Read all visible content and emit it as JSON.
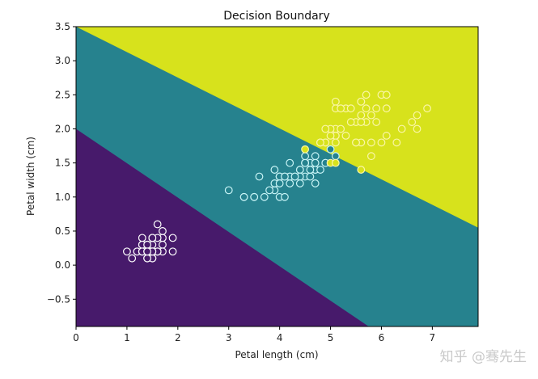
{
  "chart_data": {
    "type": "scatter",
    "title": "Decision Boundary",
    "xlabel": "Petal length (cm)",
    "ylabel": "Petal width (cm)",
    "xlim": [
      0,
      7.9
    ],
    "ylim": [
      -0.9,
      3.5
    ],
    "xticks": [
      "0",
      "1",
      "2",
      "3",
      "4",
      "5",
      "6",
      "7"
    ],
    "yticks": [
      "−0.5",
      "0.0",
      "0.5",
      "1.0",
      "1.5",
      "2.0",
      "2.5",
      "3.0",
      "3.5"
    ],
    "grid": false,
    "regions": {
      "colors": [
        "#471a6b",
        "#26828e",
        "#d7e21c"
      ],
      "boundaries": [
        {
          "from": [
            0,
            2.0
          ],
          "to": [
            5.75,
            -0.9
          ]
        },
        {
          "from": [
            0,
            3.5
          ],
          "to": [
            7.9,
            0.55
          ]
        }
      ]
    },
    "series": [
      {
        "color": "#471a6b",
        "edge": "#ffffff",
        "points": [
          [
            1.4,
            0.2
          ],
          [
            1.4,
            0.2
          ],
          [
            1.3,
            0.2
          ],
          [
            1.5,
            0.2
          ],
          [
            1.4,
            0.2
          ],
          [
            1.7,
            0.4
          ],
          [
            1.4,
            0.3
          ],
          [
            1.5,
            0.2
          ],
          [
            1.4,
            0.2
          ],
          [
            1.5,
            0.1
          ],
          [
            1.5,
            0.2
          ],
          [
            1.6,
            0.2
          ],
          [
            1.4,
            0.1
          ],
          [
            1.1,
            0.1
          ],
          [
            1.2,
            0.2
          ],
          [
            1.5,
            0.4
          ],
          [
            1.3,
            0.4
          ],
          [
            1.4,
            0.3
          ],
          [
            1.7,
            0.3
          ],
          [
            1.5,
            0.3
          ],
          [
            1.7,
            0.2
          ],
          [
            1.5,
            0.4
          ],
          [
            1.0,
            0.2
          ],
          [
            1.7,
            0.5
          ],
          [
            1.9,
            0.2
          ],
          [
            1.6,
            0.2
          ],
          [
            1.6,
            0.4
          ],
          [
            1.5,
            0.2
          ],
          [
            1.4,
            0.2
          ],
          [
            1.6,
            0.2
          ],
          [
            1.6,
            0.2
          ],
          [
            1.5,
            0.4
          ],
          [
            1.5,
            0.1
          ],
          [
            1.4,
            0.2
          ],
          [
            1.5,
            0.2
          ],
          [
            1.2,
            0.2
          ],
          [
            1.3,
            0.2
          ],
          [
            1.4,
            0.1
          ],
          [
            1.3,
            0.2
          ],
          [
            1.5,
            0.2
          ],
          [
            1.3,
            0.3
          ],
          [
            1.3,
            0.3
          ],
          [
            1.3,
            0.2
          ],
          [
            1.6,
            0.6
          ],
          [
            1.9,
            0.4
          ],
          [
            1.4,
            0.3
          ],
          [
            1.6,
            0.2
          ],
          [
            1.4,
            0.2
          ],
          [
            1.5,
            0.2
          ],
          [
            1.4,
            0.2
          ]
        ]
      },
      {
        "color": "#26828e",
        "edge": "#c8f4f6",
        "points": [
          [
            4.7,
            1.4
          ],
          [
            4.5,
            1.5
          ],
          [
            4.9,
            1.5
          ],
          [
            4.0,
            1.3
          ],
          [
            4.6,
            1.5
          ],
          [
            4.5,
            1.3
          ],
          [
            4.7,
            1.6
          ],
          [
            3.3,
            1.0
          ],
          [
            4.6,
            1.3
          ],
          [
            3.9,
            1.4
          ],
          [
            3.5,
            1.0
          ],
          [
            4.2,
            1.5
          ],
          [
            4.0,
            1.0
          ],
          [
            4.7,
            1.4
          ],
          [
            3.6,
            1.3
          ],
          [
            4.4,
            1.4
          ],
          [
            4.5,
            1.5
          ],
          [
            4.1,
            1.0
          ],
          [
            4.5,
            1.5
          ],
          [
            3.9,
            1.1
          ],
          [
            4.8,
            1.8
          ],
          [
            4.0,
            1.3
          ],
          [
            4.9,
            1.5
          ],
          [
            4.7,
            1.2
          ],
          [
            4.3,
            1.3
          ],
          [
            4.4,
            1.4
          ],
          [
            4.8,
            1.4
          ],
          [
            5.0,
            1.7
          ],
          [
            4.5,
            1.5
          ],
          [
            3.5,
            1.0
          ],
          [
            3.8,
            1.1
          ],
          [
            3.7,
            1.0
          ],
          [
            3.9,
            1.2
          ],
          [
            5.1,
            1.6
          ],
          [
            4.5,
            1.5
          ],
          [
            4.5,
            1.6
          ],
          [
            4.7,
            1.5
          ],
          [
            4.4,
            1.3
          ],
          [
            4.1,
            1.3
          ],
          [
            4.0,
            1.3
          ],
          [
            4.4,
            1.2
          ],
          [
            4.6,
            1.4
          ],
          [
            4.0,
            1.2
          ],
          [
            3.3,
            1.0
          ],
          [
            4.2,
            1.3
          ],
          [
            4.2,
            1.2
          ],
          [
            4.2,
            1.3
          ],
          [
            4.3,
            1.3
          ],
          [
            3.0,
            1.1
          ],
          [
            4.1,
            1.3
          ]
        ]
      },
      {
        "color": "#d7e21c",
        "edge": "#fbf6a8",
        "points": [
          [
            6.0,
            2.5
          ],
          [
            5.1,
            1.9
          ],
          [
            5.9,
            2.1
          ],
          [
            5.6,
            1.8
          ],
          [
            5.8,
            2.2
          ],
          [
            6.6,
            2.1
          ],
          [
            4.5,
            1.7
          ],
          [
            6.3,
            1.8
          ],
          [
            5.8,
            1.8
          ],
          [
            6.1,
            2.5
          ],
          [
            5.1,
            2.0
          ],
          [
            5.3,
            1.9
          ],
          [
            5.5,
            2.1
          ],
          [
            5.0,
            2.0
          ],
          [
            5.1,
            2.4
          ],
          [
            5.3,
            2.3
          ],
          [
            5.5,
            1.8
          ],
          [
            6.7,
            2.2
          ],
          [
            6.9,
            2.3
          ],
          [
            5.0,
            1.5
          ],
          [
            5.7,
            2.3
          ],
          [
            4.9,
            2.0
          ],
          [
            6.7,
            2.0
          ],
          [
            4.9,
            1.8
          ],
          [
            5.7,
            2.1
          ],
          [
            6.0,
            1.8
          ],
          [
            4.8,
            1.8
          ],
          [
            4.9,
            1.8
          ],
          [
            5.6,
            2.1
          ],
          [
            5.8,
            1.6
          ],
          [
            6.1,
            1.9
          ],
          [
            6.4,
            2.0
          ],
          [
            5.6,
            2.2
          ],
          [
            5.1,
            1.5
          ],
          [
            5.6,
            1.4
          ],
          [
            6.1,
            2.3
          ],
          [
            5.6,
            2.4
          ],
          [
            5.5,
            1.8
          ],
          [
            4.8,
            1.8
          ],
          [
            5.4,
            2.1
          ],
          [
            5.6,
            2.4
          ],
          [
            5.1,
            2.3
          ],
          [
            5.1,
            1.9
          ],
          [
            5.9,
            2.3
          ],
          [
            5.7,
            2.5
          ],
          [
            5.2,
            2.3
          ],
          [
            5.0,
            1.9
          ],
          [
            5.2,
            2.0
          ],
          [
            5.4,
            2.3
          ],
          [
            5.1,
            1.8
          ]
        ]
      }
    ]
  },
  "watermark": "知乎 @骞先生"
}
